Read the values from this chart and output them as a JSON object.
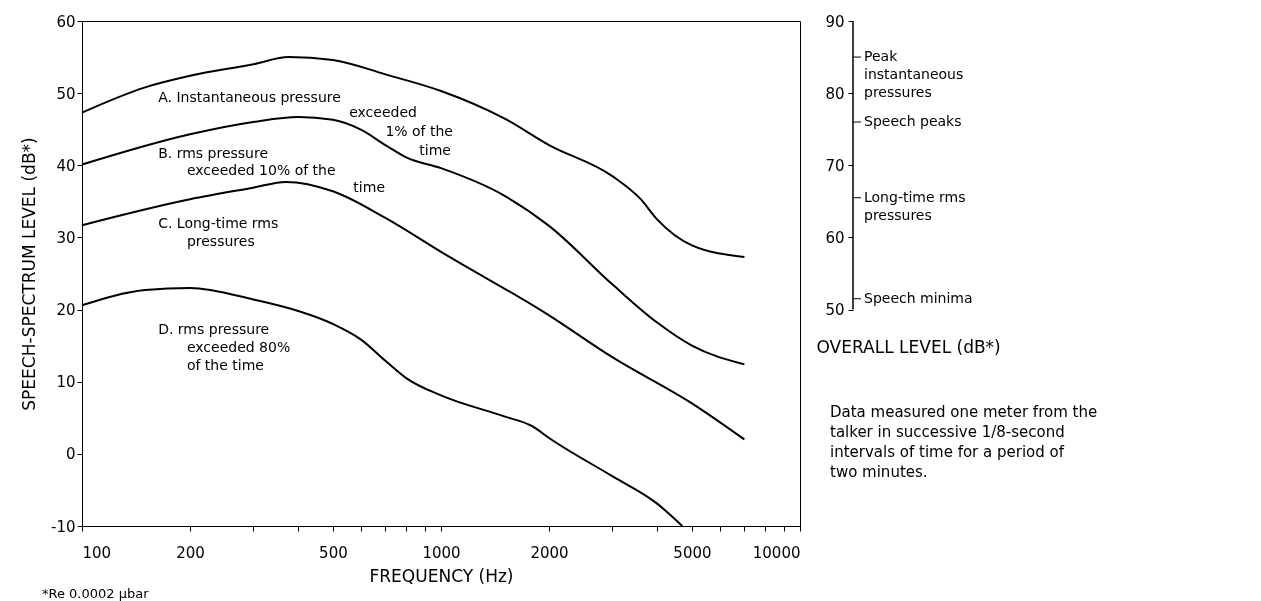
{
  "chart_data": {
    "type": "line",
    "xlabel": "FREQUENCY (Hz)",
    "ylabel": "SPEECH-SPECTRUM LEVEL (dB*)",
    "y2label": "OVERALL LEVEL (dB*)",
    "log": "x",
    "xlim": [
      100,
      10000
    ],
    "xticks": [
      100,
      200,
      {
        "value": 300,
        "label": null
      },
      {
        "value": 400,
        "label": null
      },
      500,
      {
        "value": 600,
        "label": null
      },
      {
        "value": 700,
        "label": null
      },
      {
        "value": 800,
        "label": null
      },
      {
        "value": 900,
        "label": null
      },
      1000,
      2000,
      {
        "value": 3000,
        "label": null
      },
      {
        "value": 4000,
        "label": null
      },
      5000,
      {
        "value": 6000,
        "label": null
      },
      {
        "value": 7000,
        "label": null
      },
      {
        "value": 8000,
        "label": null
      },
      {
        "value": 9000,
        "label": null
      },
      10000
    ],
    "ylim": [
      -10,
      60
    ],
    "yticks": [
      -10,
      0,
      10,
      20,
      30,
      40,
      50,
      60
    ],
    "y2lim": [
      20,
      90
    ],
    "y2ticks": [
      50,
      60,
      70,
      80,
      90
    ],
    "grid": false,
    "legend": false,
    "marker": "none",
    "line_style": "solid",
    "series": [
      {
        "name": "A. Instantaneous pressure exceeded 1% of the time",
        "color": "#000000",
        "x": [
          100,
          150,
          200,
          300,
          377,
          500,
          700,
          1000,
          1500,
          2000,
          3000,
          3600,
          4000,
          5000,
          7000
        ],
        "values": [
          47.3,
          50.8,
          52.4,
          54,
          55,
          54.6,
          52.6,
          50.3,
          46.5,
          42.8,
          38.5,
          35.3,
          32.5,
          28.9,
          27.3
        ]
      },
      {
        "name": "B. rms pressure exceeded 10% of the time",
        "color": "#000000",
        "x": [
          100,
          200,
          300,
          400,
          500,
          600,
          700,
          800,
          1000,
          1500,
          2000,
          3000,
          4000,
          5000,
          7000
        ],
        "values": [
          40.1,
          44.3,
          46,
          46.7,
          46.3,
          44.9,
          42.8,
          41.1,
          39.6,
          35.8,
          31.6,
          23.5,
          18.2,
          15,
          12.4
        ]
      },
      {
        "name": "C. Long-time rms pressures",
        "color": "#000000",
        "x": [
          100,
          200,
          300,
          370,
          500,
          700,
          1000,
          2000,
          3000,
          5000,
          7000
        ],
        "values": [
          31.7,
          35.3,
          36.9,
          37.7,
          36.4,
          32.7,
          28,
          19.2,
          13.4,
          7,
          2
        ]
      },
      {
        "name": "D. rms pressure exceeded 80% of the time",
        "color": "#000000",
        "x": [
          100,
          150,
          200,
          300,
          400,
          500,
          600,
          700,
          800,
          1000,
          1500,
          1800,
          2000,
          3000,
          4000,
          4700
        ],
        "values": [
          20.6,
          22.7,
          23,
          21.4,
          19.8,
          18,
          15.8,
          12.9,
          10.5,
          8.1,
          5.2,
          3.8,
          2.2,
          -3.1,
          -6.9,
          -10
        ]
      }
    ],
    "ref_lines": [
      {
        "axis": "y2",
        "value": 85,
        "label": "Peak instantaneous pressures"
      },
      {
        "axis": "y2",
        "value": 76,
        "label": "Speech peaks"
      },
      {
        "axis": "y2",
        "value": 65.5,
        "label": "Long-time rms pressures"
      },
      {
        "axis": "y2",
        "value": 51.5,
        "label": "Speech minima"
      }
    ],
    "annotations": [
      "*Re 0.0002 μbar",
      "Data measured one meter from the talker in successive 1/8-second intervals of time for a period of two minutes."
    ]
  }
}
